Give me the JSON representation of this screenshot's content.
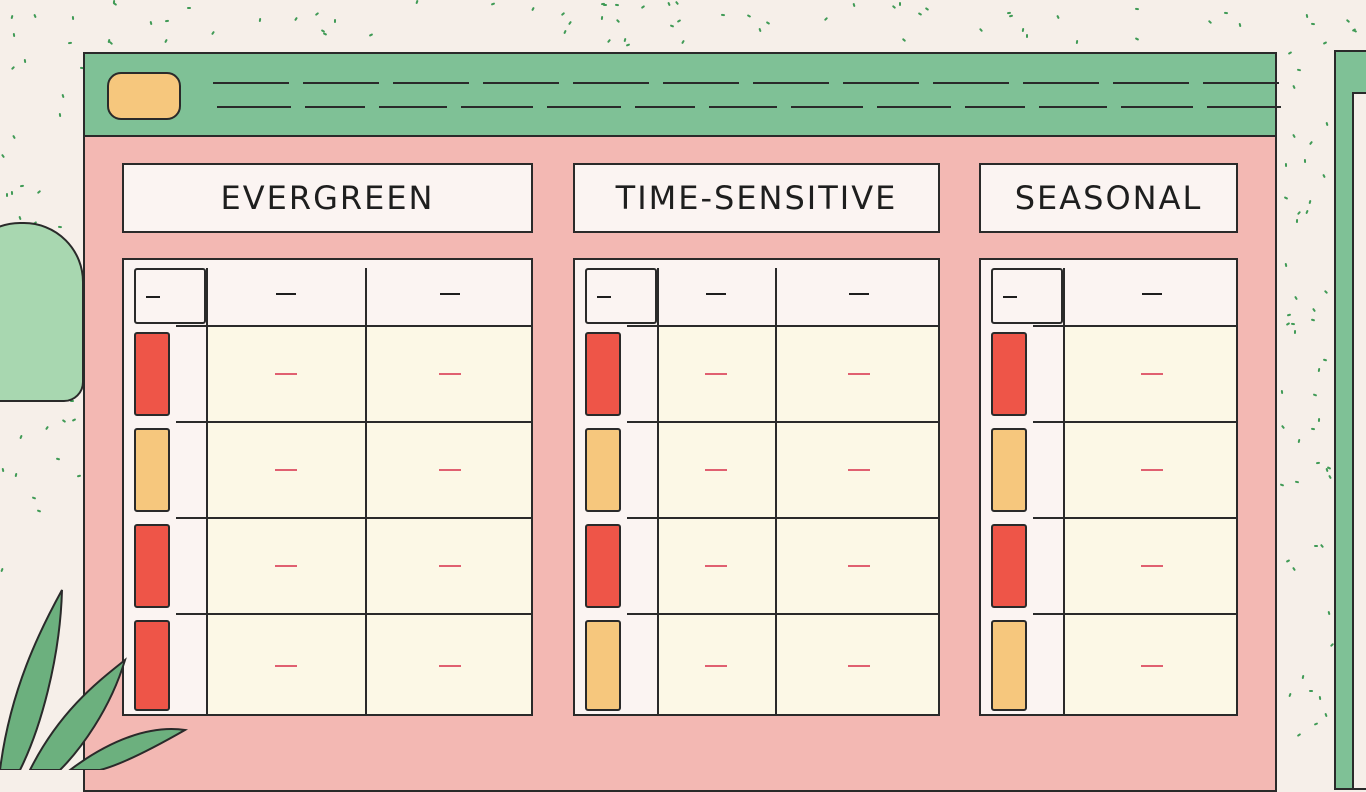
{
  "colors": {
    "header": "#7fc196",
    "body": "#f3b8b3",
    "red": "#ee5548",
    "yellow": "#f6c77d"
  },
  "columns": [
    {
      "title": "EVERGREEN",
      "statuses": [
        "red",
        "yellow",
        "red",
        "red"
      ],
      "value_cols": 2
    },
    {
      "title": "TIME-SENSITIVE",
      "statuses": [
        "red",
        "yellow",
        "red",
        "yellow"
      ],
      "value_cols": 2
    },
    {
      "title": "SEASONAL",
      "statuses": [
        "red",
        "yellow",
        "red",
        "yellow"
      ],
      "value_cols": 1
    }
  ]
}
